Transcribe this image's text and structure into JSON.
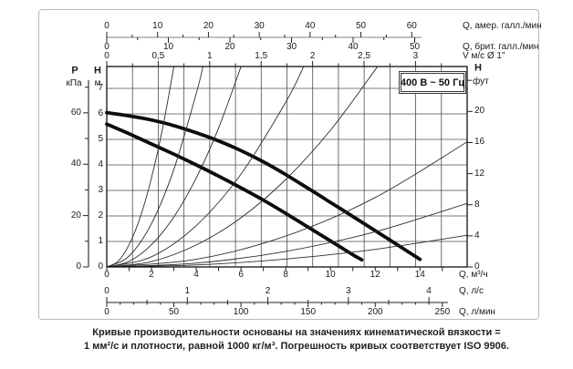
{
  "figure": {
    "power_label": "400 В ~ 50 Гц",
    "caption_line1": "Кривые производительности основаны на значениях кинематической вязкости =",
    "caption_line2": "1 мм²/с и плотности, равной 1000 кг/м³. Погрешность кривых соответствует ISO 9906."
  },
  "axes": {
    "top_us": {
      "unit": "Q, амер. галл./мин",
      "majors": [
        0,
        10,
        20,
        30,
        40,
        50,
        60
      ],
      "minor_step": 5
    },
    "top_imp": {
      "unit": "Q, брит. галл./мин",
      "majors": [
        0,
        10,
        20,
        30,
        40,
        50
      ],
      "minor_step": 5
    },
    "top_v": {
      "unit": "V м/с Ø 1\"",
      "majors": [
        "0",
        "0,5",
        "1",
        "1,5",
        "2",
        "2,5",
        "3"
      ],
      "minor_step": 0.25
    },
    "bottom_m3h": {
      "unit": "Q, м³/ч",
      "majors": [
        0,
        2,
        4,
        6,
        8,
        10,
        12,
        14
      ],
      "minor_step": 1
    },
    "bottom_ls": {
      "unit": "Q, л/с",
      "majors": [
        0,
        1,
        2,
        3,
        4
      ],
      "minor_step": 0.5
    },
    "bottom_lmin": {
      "unit": "Q, л/мин",
      "majors": [
        0,
        50,
        100,
        150,
        200,
        250
      ],
      "minor_step": 10
    },
    "left_kpa": {
      "title": [
        "P",
        "кПа"
      ],
      "majors": [
        0,
        20,
        40,
        60
      ],
      "minor_step": 10,
      "max": 70
    },
    "left_m": {
      "title": [
        "H",
        "м"
      ],
      "majors": [
        0,
        1,
        2,
        3,
        4,
        5,
        6,
        7
      ]
    },
    "right_ft": {
      "title": [
        "H",
        "фут"
      ],
      "majors": [
        0,
        4,
        8,
        12,
        16,
        20
      ],
      "minor_step": 4,
      "max": 24
    }
  },
  "chart_data": {
    "type": "line",
    "title": "400 В ~ 50 Гц",
    "xlabel": "Q, м³/ч",
    "ylabel": "H, м",
    "xlim": [
      0,
      16.1
    ],
    "ylim": [
      0,
      7.85
    ],
    "grid": {
      "vertical_step_v_ms": 0.25,
      "horizontal_step_m": 1,
      "grid_on": true
    },
    "legend": "none",
    "series": [
      {
        "name": "pump-curve-speed-high",
        "style": "thick",
        "points": [
          [
            0,
            6.05
          ],
          [
            1,
            5.92
          ],
          [
            2,
            5.76
          ],
          [
            3,
            5.54
          ],
          [
            4,
            5.26
          ],
          [
            5,
            4.94
          ],
          [
            6,
            4.56
          ],
          [
            7,
            4.12
          ],
          [
            8,
            3.62
          ],
          [
            9,
            3.08
          ],
          [
            10,
            2.53
          ],
          [
            11,
            1.98
          ],
          [
            12,
            1.42
          ],
          [
            13,
            0.86
          ],
          [
            14,
            0.3
          ]
        ]
      },
      {
        "name": "pump-curve-speed-low",
        "style": "thick",
        "points": [
          [
            0,
            5.6
          ],
          [
            1,
            5.22
          ],
          [
            2,
            4.82
          ],
          [
            3,
            4.42
          ],
          [
            4,
            4.0
          ],
          [
            5,
            3.56
          ],
          [
            6,
            3.1
          ],
          [
            7,
            2.62
          ],
          [
            8,
            2.1
          ],
          [
            9,
            1.56
          ],
          [
            10,
            1.02
          ],
          [
            11,
            0.48
          ],
          [
            11.4,
            0.28
          ]
        ]
      },
      {
        "name": "system-curve-1",
        "style": "thin",
        "points": [
          [
            0,
            0
          ],
          [
            0.5,
            0.22
          ],
          [
            1,
            0.87
          ],
          [
            1.5,
            1.96
          ],
          [
            2,
            3.49
          ],
          [
            2.5,
            5.45
          ],
          [
            3,
            7.85
          ]
        ]
      },
      {
        "name": "system-curve-2",
        "style": "thin",
        "points": [
          [
            0,
            0
          ],
          [
            1,
            0.43
          ],
          [
            2,
            1.7
          ],
          [
            3,
            3.83
          ],
          [
            4,
            6.8
          ],
          [
            4.3,
            7.85
          ]
        ]
      },
      {
        "name": "system-curve-3",
        "style": "thin",
        "points": [
          [
            0,
            0
          ],
          [
            1,
            0.22
          ],
          [
            2,
            0.87
          ],
          [
            3,
            1.96
          ],
          [
            4,
            3.49
          ],
          [
            5,
            5.45
          ],
          [
            6,
            7.85
          ]
        ]
      },
      {
        "name": "system-curve-4",
        "style": "thin",
        "points": [
          [
            0,
            0
          ],
          [
            2,
            0.4
          ],
          [
            4,
            1.62
          ],
          [
            6,
            3.64
          ],
          [
            8,
            6.46
          ],
          [
            8.8,
            7.85
          ]
        ]
      },
      {
        "name": "system-curve-5",
        "style": "thin",
        "points": [
          [
            0,
            0
          ],
          [
            2,
            0.21
          ],
          [
            4,
            0.86
          ],
          [
            6,
            1.93
          ],
          [
            8,
            3.43
          ],
          [
            10,
            5.36
          ],
          [
            12.1,
            7.85
          ]
        ]
      },
      {
        "name": "system-curve-6",
        "style": "thin",
        "points": [
          [
            0,
            0
          ],
          [
            4,
            0.3
          ],
          [
            8,
            1.21
          ],
          [
            12,
            2.72
          ],
          [
            16.1,
            4.9
          ]
        ]
      },
      {
        "name": "system-curve-7",
        "style": "thin",
        "points": [
          [
            0,
            0
          ],
          [
            4,
            0.15
          ],
          [
            8,
            0.61
          ],
          [
            12,
            1.38
          ],
          [
            16.1,
            2.49
          ]
        ]
      },
      {
        "name": "system-curve-8",
        "style": "thin",
        "points": [
          [
            0,
            0
          ],
          [
            4,
            0.08
          ],
          [
            8,
            0.31
          ],
          [
            12,
            0.69
          ],
          [
            16.1,
            1.24
          ]
        ]
      }
    ]
  }
}
